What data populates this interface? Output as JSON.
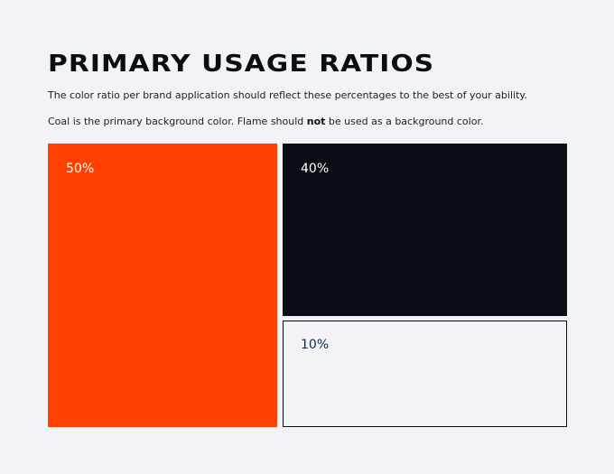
{
  "title": "PRIMARY USAGE RATIOS",
  "intro": "The color ratio per brand application should reflect these percentages to the best of your ability.",
  "note": {
    "before": "Coal is the primary background color. Flame should ",
    "emphasis": "not",
    "after": " be used as a background color."
  },
  "colors": {
    "flame": "#ff4000",
    "coal": "#0a0d14",
    "light": "#f2f3f6",
    "light_label": "#0a2a5e"
  },
  "blocks": [
    {
      "label": "50%",
      "value": 50
    },
    {
      "label": "40%",
      "value": 40
    },
    {
      "label": "10%",
      "value": 10
    }
  ]
}
